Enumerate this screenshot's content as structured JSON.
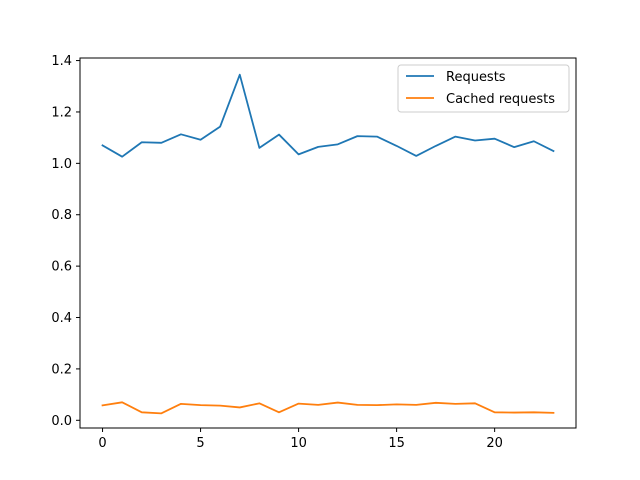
{
  "chart_data": {
    "type": "line",
    "title": "",
    "xlabel": "",
    "ylabel": "",
    "x": [
      0,
      1,
      2,
      3,
      4,
      5,
      6,
      7,
      8,
      9,
      10,
      11,
      12,
      13,
      14,
      15,
      16,
      17,
      18,
      19,
      20,
      21,
      22,
      23
    ],
    "xlim": [
      -1.15,
      24.15
    ],
    "ylim": [
      -0.03,
      1.41
    ],
    "xticks": [
      0,
      5,
      10,
      15,
      20
    ],
    "yticks": [
      0.0,
      0.2,
      0.4,
      0.6,
      0.8,
      1.0,
      1.2,
      1.4
    ],
    "xtick_labels": [
      "0",
      "5",
      "10",
      "15",
      "20"
    ],
    "ytick_labels": [
      "0.0",
      "0.2",
      "0.4",
      "0.6",
      "0.8",
      "1.0",
      "1.2",
      "1.4"
    ],
    "grid": false,
    "legend_position": "top-right",
    "series": [
      {
        "name": "Requests",
        "color": "#1f77b4",
        "values": [
          1.07,
          1.026,
          1.082,
          1.08,
          1.113,
          1.092,
          1.143,
          1.345,
          1.06,
          1.112,
          1.035,
          1.064,
          1.074,
          1.106,
          1.104,
          1.068,
          1.029,
          1.068,
          1.104,
          1.089,
          1.096,
          1.063,
          1.086,
          1.048
        ]
      },
      {
        "name": "Cached requests",
        "color": "#ff7f0e",
        "values": [
          0.058,
          0.07,
          0.031,
          0.027,
          0.064,
          0.059,
          0.057,
          0.05,
          0.066,
          0.031,
          0.065,
          0.06,
          0.069,
          0.06,
          0.059,
          0.062,
          0.06,
          0.068,
          0.064,
          0.066,
          0.031,
          0.03,
          0.031,
          0.029
        ]
      }
    ]
  }
}
